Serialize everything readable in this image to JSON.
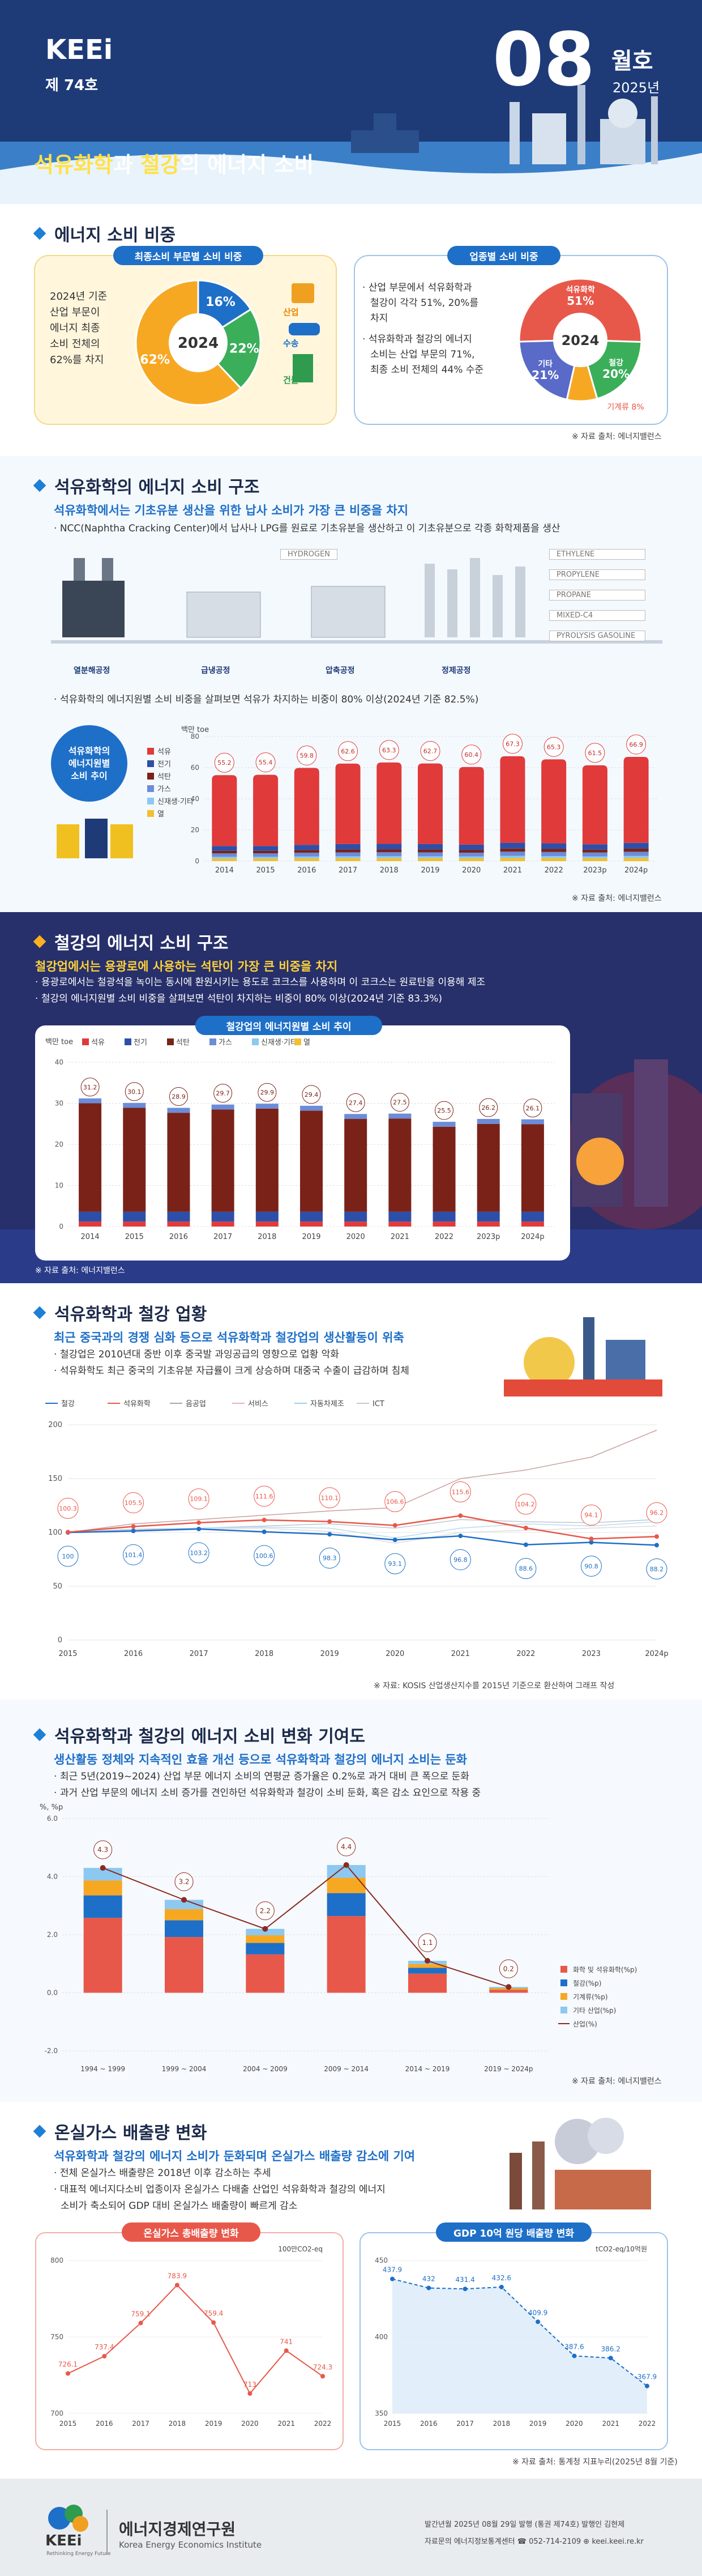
{
  "header": {
    "brand": "KEEi",
    "issue": "제 74호",
    "month_num": "08",
    "month_word": "월호",
    "year": "2025년",
    "title_a": "석유화학",
    "title_b": "과 ",
    "title_c": "철강",
    "title_d": "의 에너지 소비"
  },
  "s1": {
    "title": "에너지 소비 비중",
    "left_pill": "최종소비 부문별 소비 비중",
    "left_text": [
      "2024년 기준",
      "산업 부문이",
      "에너지 최종",
      "소비 전체의",
      "62%를 차지"
    ],
    "left_center": "2024",
    "left_labels": {
      "industry": "산업",
      "transport": "수송",
      "building": "건물"
    },
    "right_pill": "업종별 소비 비중",
    "right_text1": [
      "산업 부문에서 석유화학과",
      "철강이 각각 51%, 20%를",
      "차지"
    ],
    "right_text2": [
      "석유화학과 철강의 에너지",
      "소비는 산업 부문의 71%,",
      "최종 소비 전체의 44% 수준"
    ],
    "right_center": "2024",
    "right_labels": {
      "petchem": "석유화학",
      "steel": "철강",
      "other": "기타",
      "machine": "기계류"
    },
    "source": "※ 자료 출처: 에너지밸런스"
  },
  "s2": {
    "title": "석유화학의 에너지 소비 구조",
    "sub": "석유화학에서는 기초유분 생산을 위한 납사 소비가 가장 큰 비중을 차지",
    "bullet": "NCC(Naphtha Cracking Center)에서 납사나 LPG를 원료로 기초유분을 생산하고 이 기초유분으로 각종 화학제품을 생산",
    "plants": [
      "열분해공정",
      "급냉공정",
      "압축공정",
      "정제공정"
    ],
    "products": [
      "HYDROGEN",
      "ETHYLENE",
      "PROPYLENE",
      "PROPANE",
      "MIXED-C4",
      "PYROLYSIS GASOLINE"
    ],
    "bullet2": "석유화학의 에너지원별 소비 비중을 살펴보면 석유가 차지하는 비중이 80% 이상(2024년 기준 82.5%)",
    "badge": [
      "석유화학의",
      "에너지원별",
      "소비 추이"
    ],
    "unit": "백만 toe",
    "legend": [
      "석유",
      "전기",
      "석탄",
      "가스",
      "신재생·기타",
      "열"
    ],
    "source": "※ 자료 출처: 에너지밸런스"
  },
  "s3": {
    "title": "철강의 에너지 소비 구조",
    "sub": "철강업에서는 용광로에 사용하는 석탄이 가장 큰 비중을 차지",
    "bullets": [
      "용광로에서는 철광석을 녹이는 동시에 환원시키는 용도로 코크스를 사용하며 이 코크스는 원료탄을 이용해 제조",
      "철강의 에너지원별 소비 비중을 살펴보면 석탄이 차지하는 비중이 80% 이상(2024년 기준 83.3%)"
    ],
    "pill": "철강업의 에너지원별 소비 추이",
    "unit": "백만 toe",
    "legend": [
      "석유",
      "전기",
      "석탄",
      "가스",
      "신재생·기타",
      "열"
    ],
    "source": "※ 자료 출처: 에너지밸런스"
  },
  "s4": {
    "title": "석유화학과 철강 업황",
    "sub": "최근 중국과의 경쟁 심화 등으로 석유화학과 철강업의 생산활동이 위축",
    "bullets": [
      "철강업은 2010년대 중반 이후 중국발 과잉공급의 영향으로 업황 악화",
      "석유화학도 최근 중국의 기초유분 자급률이 크게 상승하며 대중국 수출이 급감하며 침체"
    ],
    "legend": [
      "철강",
      "석유화학",
      "음공업",
      "서비스",
      "자동차제조",
      "ICT"
    ],
    "source": "※ 자료: KOSIS 산업생산지수를 2015년 기준으로 환산하여 그래프 작성"
  },
  "s5": {
    "title": "석유화학과 철강의 에너지 소비 변화 기여도",
    "sub": "생산활동 정체와 지속적인 효율 개선 등으로 석유화학과 철강의 에너지 소비는 둔화",
    "bullets": [
      "최근 5년(2019~2024) 산업 부문 에너지 소비의 연평균 증가율은 0.2%로 과거 대비 큰 폭으로 둔화",
      "과거 산업 부문의 에너지 소비 증가를 견인하던 석유화학과 철강이 소비 둔화, 혹은 감소 요인으로 작용 중"
    ],
    "unit": "%, %p",
    "legend": [
      "화학 및 석유화학(%p)",
      "철강(%p)",
      "기계류(%p)",
      "기타 산업(%p)",
      "산업(%)"
    ],
    "source": "※ 자료 출처: 에너지밸런스"
  },
  "s6": {
    "title": "온실가스 배출량 변화",
    "sub": "석유화학과 철강의 에너지 소비가 둔화되며 온실가스 배출량 감소에 기여",
    "bullets": [
      "전체 온실가스 배출량은 2018년 이후 감소하는 추세",
      "대표적 에너지다소비 업종이자 온실가스 다배출 산업인 석유화학과 철강의 에너지",
      "소비가 축소되어 GDP 대비 온실가스 배출량이 빠르게 감소"
    ],
    "left_pill": "온실가스 총배출량 변화",
    "left_unit": "100만CO2-eq",
    "right_pill": "GDP 10억 원당 배출량 변화",
    "right_unit": "tCO2-eq/10억원",
    "source": "※ 자료 출처: 통계청 지표누리(2025년 8월 기준)"
  },
  "footer": {
    "org_ko": "에너지경제연구원",
    "org_en": "Korea Energy Economics Institute",
    "brand": "KEEi",
    "tag": "Rethinking Energy Future",
    "line1": "발간년월 2025년 08월 29일 발행 (통권 제74호) 발행인 김현제",
    "line2": "자료문의 에너지정보통계센터  ☎ 052-714-2109  ⊕ keei.keei.re.kr"
  },
  "chart_data": [
    {
      "type": "pie",
      "id": "final_consumption",
      "center": "2024",
      "values": {
        "산업": 62,
        "수송": 16,
        "건물": 22
      }
    },
    {
      "type": "pie",
      "id": "industry_sector",
      "center": "2024",
      "values": {
        "석유화학": 51,
        "철강": 20,
        "기타": 21,
        "기계류": 8
      }
    },
    {
      "type": "bar",
      "id": "petchem_energy",
      "ylabel": "백만 toe",
      "ylim": [
        0,
        80
      ],
      "categories": [
        "2014",
        "2015",
        "2016",
        "2017",
        "2018",
        "2019",
        "2020",
        "2021",
        "2022",
        "2023p",
        "2024p"
      ],
      "totals": [
        55.2,
        55.4,
        59.8,
        62.6,
        63.3,
        62.7,
        60.4,
        67.3,
        65.3,
        61.5,
        66.9
      ]
    },
    {
      "type": "bar",
      "id": "steel_energy",
      "ylabel": "백만 toe",
      "ylim": [
        0,
        40
      ],
      "categories": [
        "2014",
        "2015",
        "2016",
        "2017",
        "2018",
        "2019",
        "2020",
        "2021",
        "2022",
        "2023p",
        "2024p"
      ],
      "totals": [
        31.2,
        30.1,
        28.9,
        29.7,
        29.9,
        29.4,
        27.4,
        27.5,
        25.5,
        26.2,
        26.1
      ]
    },
    {
      "type": "line",
      "id": "production_index",
      "ylim": [
        0,
        200
      ],
      "categories": [
        "2015",
        "2016",
        "2017",
        "2018",
        "2019",
        "2020",
        "2021",
        "2022",
        "2023",
        "2024p"
      ],
      "series": [
        {
          "name": "철강",
          "values": [
            100.0,
            101.4,
            103.2,
            100.6,
            98.3,
            93.1,
            96.8,
            88.6,
            90.8,
            88.2
          ]
        },
        {
          "name": "석유화학",
          "values": [
            100.3,
            105.5,
            109.1,
            111.6,
            110.1,
            106.6,
            115.6,
            104.2,
            94.1,
            96.2
          ]
        }
      ]
    },
    {
      "type": "bar",
      "id": "contribution",
      "ylabel": "%, %p",
      "ylim": [
        -2,
        6
      ],
      "categories": [
        "1994 ~ 1999",
        "1999 ~ 2004",
        "2004 ~ 2009",
        "2009 ~ 2014",
        "2014 ~ 2019",
        "2019 ~ 2024p"
      ],
      "industry": [
        4.3,
        3.2,
        2.2,
        4.4,
        1.1,
        0.2
      ]
    },
    {
      "type": "line",
      "id": "ghg_total",
      "ylabel": "100만CO2-eq",
      "ylim": [
        700,
        800
      ],
      "categories": [
        "2015",
        "2016",
        "2017",
        "2018",
        "2019",
        "2020",
        "2021",
        "2022"
      ],
      "values": [
        726.1,
        737.4,
        759.1,
        783.9,
        759.4,
        713,
        741,
        724.3
      ]
    },
    {
      "type": "line",
      "id": "ghg_per_gdp",
      "ylabel": "tCO2-eq/10억원",
      "ylim": [
        350,
        450
      ],
      "categories": [
        "2015",
        "2016",
        "2017",
        "2018",
        "2019",
        "2020",
        "2021",
        "2022"
      ],
      "values": [
        437.9,
        432,
        431.4,
        432.6,
        409.9,
        387.6,
        386.2,
        367.9
      ]
    }
  ]
}
